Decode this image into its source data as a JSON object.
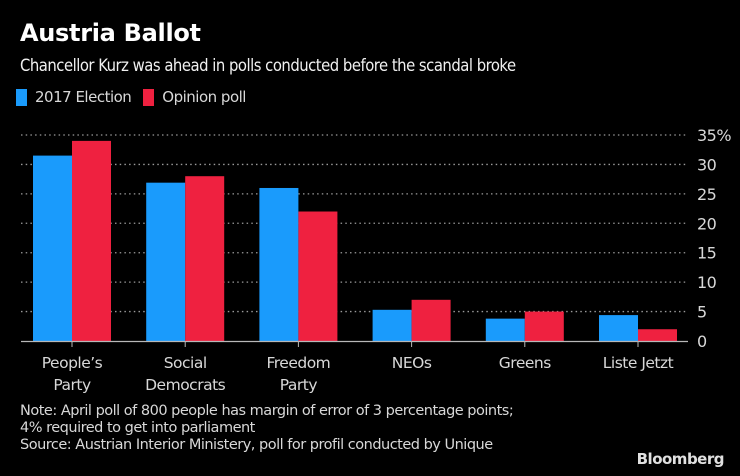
{
  "chart_data": {
    "type": "bar",
    "title": "Austria Ballot",
    "subtitle": "Chancellor Kurz was ahead in polls conducted before the scandal broke",
    "categories": [
      [
        "People’s",
        "Party"
      ],
      [
        "Social",
        "Democrats"
      ],
      [
        "Freedom",
        "Party"
      ],
      [
        "NEOs"
      ],
      [
        "Greens"
      ],
      [
        "Liste Jetzt"
      ]
    ],
    "category_names": [
      "People’s Party",
      "Social Democrats",
      "Freedom Party",
      "NEOs",
      "Greens",
      "Liste Jetzt"
    ],
    "series": [
      {
        "name": "2017 Election",
        "color": "#1a9bfc",
        "values": [
          31.5,
          26.9,
          26.0,
          5.3,
          3.8,
          4.4
        ]
      },
      {
        "name": "Opinion poll",
        "color": "#ef2140",
        "values": [
          34,
          28,
          22,
          7,
          5,
          2
        ]
      }
    ],
    "xlabel": "",
    "ylabel": "",
    "ylim": [
      0,
      35
    ],
    "yticks": [
      0,
      5,
      10,
      15,
      20,
      25,
      30,
      35
    ],
    "ytick_labels": [
      "0",
      "5",
      "10",
      "15",
      "20",
      "25",
      "30",
      "35%"
    ],
    "y_axis_side": "right",
    "grid": true,
    "legend_position": "top-left",
    "notes": [
      "Note: April poll of 800 people has margin of error of 3 percentage points;",
      "4% required to get into parliament",
      "Source: Austrian Interior Ministery, poll for profil conducted by Unique"
    ],
    "brand": "Bloomberg"
  },
  "colors": {
    "background": "#000000",
    "grid": "#9a9a9a",
    "axis": "#b8b8b8",
    "text": "#d8d8d8"
  }
}
